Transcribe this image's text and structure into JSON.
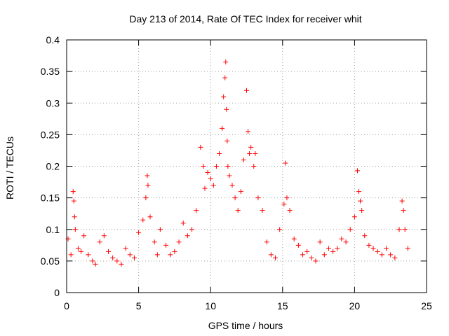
{
  "chart_data": {
    "type": "scatter",
    "title": "Day 213 of 2014, Rate Of TEC Index for receiver whit",
    "xlabel": "GPS time / hours",
    "ylabel": "ROTI / TECUs",
    "xlim": [
      0,
      25
    ],
    "ylim": [
      0,
      0.4
    ],
    "xticks": [
      0,
      5,
      10,
      15,
      20,
      25
    ],
    "yticks": [
      0,
      0.05,
      0.1,
      0.15,
      0.2,
      0.25,
      0.3,
      0.35,
      0.4
    ],
    "xtick_labels": [
      "0",
      "5",
      "10",
      "15",
      "20",
      "25"
    ],
    "ytick_labels": [
      "0",
      "0.05",
      "0.1",
      "0.15",
      "0.2",
      "0.25",
      "0.3",
      "0.35",
      "0.4"
    ],
    "grid": true,
    "marker": "+",
    "color": "#ff0000",
    "series": [
      {
        "x": [
          0.1,
          0.3,
          0.45,
          0.5,
          0.55,
          0.6,
          0.8,
          1.0,
          1.2,
          1.5,
          1.8,
          2.0,
          2.3,
          2.6,
          2.9,
          3.2,
          3.5,
          3.8,
          4.1,
          4.4,
          4.7,
          5.0,
          5.3,
          5.5,
          5.6,
          5.65,
          5.8,
          6.1,
          6.3,
          6.5,
          6.9,
          7.2,
          7.5,
          7.8,
          8.1,
          8.4,
          8.7,
          9.0,
          9.3,
          9.5,
          9.6,
          9.8,
          10.0,
          10.2,
          10.4,
          10.6,
          10.8,
          10.9,
          11.0,
          11.05,
          11.1,
          11.15,
          11.2,
          11.3,
          11.5,
          11.7,
          11.9,
          12.1,
          12.3,
          12.5,
          12.6,
          12.7,
          12.8,
          13.0,
          13.1,
          13.3,
          13.6,
          13.9,
          14.2,
          14.5,
          14.8,
          15.1,
          15.2,
          15.3,
          15.5,
          15.8,
          16.1,
          16.4,
          16.7,
          17.0,
          17.3,
          17.6,
          17.9,
          18.2,
          18.5,
          18.8,
          19.1,
          19.4,
          19.7,
          20.0,
          20.2,
          20.3,
          20.4,
          20.5,
          20.7,
          21.0,
          21.3,
          21.6,
          21.9,
          22.2,
          22.5,
          22.8,
          23.1,
          23.3,
          23.4,
          23.5,
          23.7
        ],
        "y": [
          0.085,
          0.06,
          0.16,
          0.145,
          0.12,
          0.1,
          0.07,
          0.065,
          0.09,
          0.06,
          0.05,
          0.045,
          0.08,
          0.09,
          0.065,
          0.055,
          0.05,
          0.045,
          0.07,
          0.06,
          0.055,
          0.095,
          0.115,
          0.15,
          0.185,
          0.17,
          0.12,
          0.08,
          0.06,
          0.1,
          0.075,
          0.06,
          0.065,
          0.08,
          0.11,
          0.09,
          0.1,
          0.13,
          0.23,
          0.2,
          0.165,
          0.19,
          0.18,
          0.17,
          0.2,
          0.22,
          0.26,
          0.31,
          0.34,
          0.365,
          0.29,
          0.24,
          0.2,
          0.185,
          0.17,
          0.15,
          0.13,
          0.16,
          0.21,
          0.32,
          0.255,
          0.22,
          0.23,
          0.2,
          0.22,
          0.15,
          0.13,
          0.08,
          0.06,
          0.055,
          0.1,
          0.14,
          0.205,
          0.15,
          0.13,
          0.085,
          0.075,
          0.06,
          0.065,
          0.055,
          0.05,
          0.08,
          0.06,
          0.07,
          0.065,
          0.07,
          0.085,
          0.08,
          0.1,
          0.12,
          0.193,
          0.16,
          0.145,
          0.13,
          0.09,
          0.075,
          0.07,
          0.065,
          0.06,
          0.07,
          0.06,
          0.055,
          0.1,
          0.145,
          0.13,
          0.1,
          0.07
        ]
      }
    ]
  }
}
